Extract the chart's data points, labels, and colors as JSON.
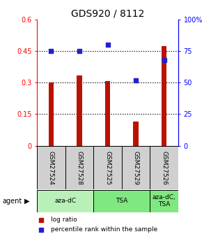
{
  "title": "GDS920 / 8112",
  "samples": [
    "GSM27524",
    "GSM27528",
    "GSM27525",
    "GSM27529",
    "GSM27526"
  ],
  "log_ratio": [
    0.302,
    0.335,
    0.306,
    0.115,
    0.472
  ],
  "percentile_rank": [
    75.0,
    75.0,
    80.0,
    52.0,
    68.0
  ],
  "agents": [
    {
      "label": "aza-dC",
      "start": 0,
      "end": 2,
      "color": "#b8f0b8"
    },
    {
      "label": "TSA",
      "start": 2,
      "end": 4,
      "color": "#80e880"
    },
    {
      "label": "aza-dC,\nTSA",
      "start": 4,
      "end": 5,
      "color": "#80e880"
    }
  ],
  "bar_color": "#bb1100",
  "dot_color": "#2222cc",
  "left_ylim": [
    0,
    0.6
  ],
  "right_ylim": [
    0,
    100
  ],
  "left_yticks": [
    0,
    0.15,
    0.3,
    0.45,
    0.6
  ],
  "left_yticklabels": [
    "0",
    "0.15",
    "0.3",
    "0.45",
    "0.6"
  ],
  "right_yticks": [
    0,
    25,
    50,
    75,
    100
  ],
  "right_yticklabels": [
    "0",
    "25",
    "50",
    "75",
    "100%"
  ],
  "hlines": [
    0.15,
    0.3,
    0.45
  ],
  "bar_width": 0.18
}
